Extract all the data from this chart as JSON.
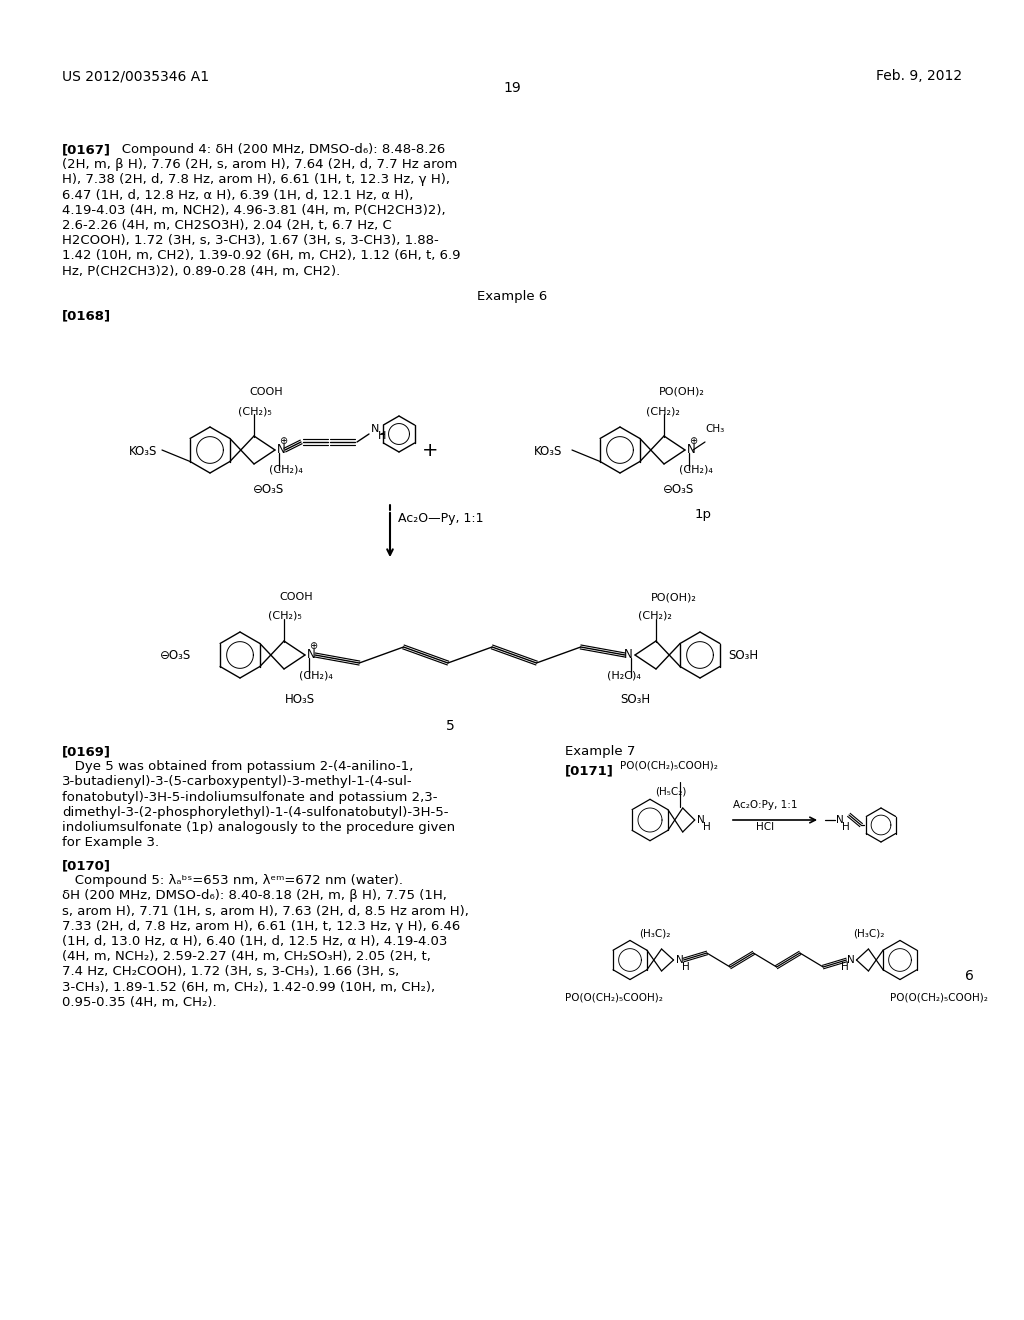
{
  "bg_color": "#ffffff",
  "header_left": "US 2012/0035346 A1",
  "header_right": "Feb. 9, 2012",
  "page_number": "19",
  "p167_lines": [
    "[0167]   Compound 4: δH (200 MHz, DMSO-d6): 8.48-8.26",
    "(2H, m, β H), 7.76 (2H, s, arom H), 7.64 (2H, d, 7.7 Hz arom",
    "H), 7.38 (2H, d, 7.8 Hz, arom H), 6.61 (1H, t, 12.3 Hz, γ H),",
    "6.47 (1H, d, 12.8 Hz, α H), 6.39 (1H, d, 12.1 Hz, α H),",
    "4.19-4.03 (4H, m, NCH2), 4.96-3.81 (4H, m, P(CH2CH3)2),",
    "2.6-2.26 (4H, m, CH2SO3H), 2.04 (2H, t, 6.7 Hz, C",
    "H2COOH), 1.72 (3H, s, 3-CH3), 1.67 (3H, s, 3-CH3), 1.88-",
    "1.42 (10H, m, CH2), 1.39-0.92 (6H, m, CH2), 1.12 (6H, t, 6.9",
    "Hz, P(CH2CH3)2), 0.89-0.28 (4H, m, CH2)."
  ],
  "p169_lines": [
    "[0169]   Dye 5 was obtained from potassium 2-(4-anilino-1,",
    "3-butadienyl)-3-(5-carboxypentyl)-3-methyl-1-(4-sul-",
    "fonatobutyl)-3H-5-indoliumsulfonate and potassium 2,3-",
    "dimethyl-3-(2-phosphorylethyl)-1-(4-sulfonatobutyl)-3H-5-",
    "indoliumsulfonate (1p) analogously to the procedure given",
    "for Example 3."
  ],
  "p170_lines": [
    "[0170]   Compound 5: λabs=653 nm, λem=672 nm (water).",
    "δH (200 MHz, DMSO-d6): 8.40-8.18 (2H, m, β H), 7.75 (1H,",
    "s, arom H), 7.71 (1H, s, arom H), 7.63 (2H, d, 8.5 Hz arom H),",
    "7.33 (2H, d, 7.8 Hz, arom H), 6.61 (1H, t, 12.3 Hz, γ H), 6.46",
    "(1H, d, 13.0 Hz, α H), 6.40 (1H, d, 12.5 Hz, α H), 4.19-4.03",
    "(4H, m, NCH2), 2.59-2.27 (4H, m, CH2SO3H), 2.05 (2H, t,",
    "7.4 Hz, CH2COOH), 1.72 (3H, s, 3-CH3), 1.66 (3H, s,",
    "3-CH3), 1.89-1.52 (6H, m, CH2), 1.42-0.99 (10H, m, CH2),",
    "0.95-0.35 (4H, m, CH2)."
  ]
}
